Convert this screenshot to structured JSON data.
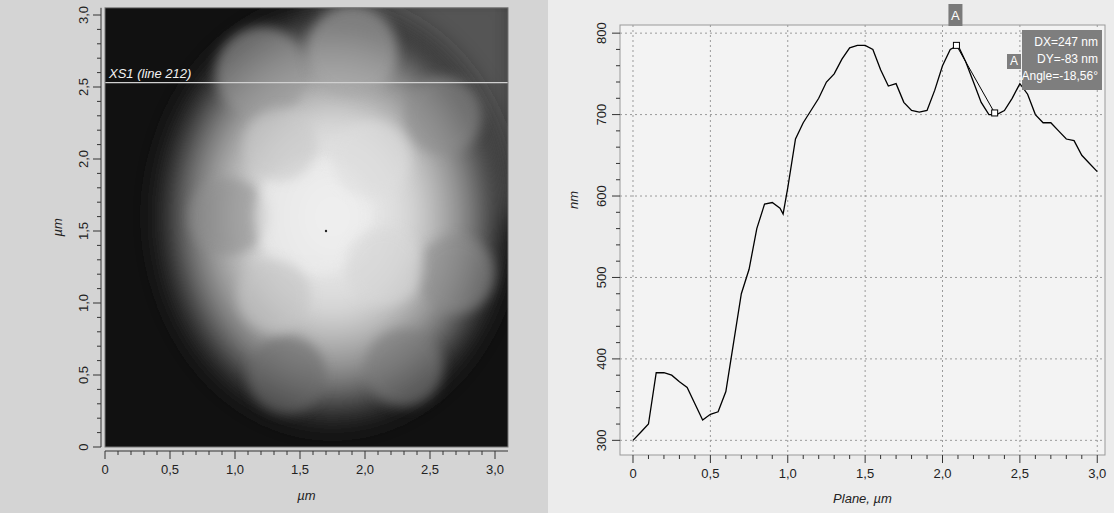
{
  "chart_data": [
    {
      "type": "image",
      "x_label": "µm",
      "y_label": "µm",
      "xlim": [
        0,
        3.1
      ],
      "ylim": [
        0,
        3.05
      ],
      "xticks": [
        0,
        {
          "value": 0.5,
          "label": "0,5"
        },
        {
          "value": 1.0,
          "label": "1,0"
        },
        {
          "value": 1.5,
          "label": "1,5"
        },
        {
          "value": 2.0,
          "label": "2,0"
        },
        {
          "value": 2.5,
          "label": "2,5"
        },
        {
          "value": 3.0,
          "label": "3,0"
        }
      ],
      "yticks": [
        0,
        {
          "value": 0.5,
          "label": "0,5"
        },
        {
          "value": 1.0,
          "label": "1,0"
        },
        {
          "value": 1.5,
          "label": "1,5"
        },
        {
          "value": 2.0,
          "label": "2,0"
        },
        {
          "value": 2.5,
          "label": "2,5"
        },
        {
          "value": 3.0,
          "label": "3,0"
        }
      ],
      "annotation": "XS1 (line 212)",
      "cross_section_y": 2.53
    },
    {
      "type": "line",
      "x_label": "Plane, µm",
      "y_label": "nm",
      "color": "#000000",
      "grid": true,
      "xlim": [
        -0.084,
        3.05
      ],
      "ylim": [
        282,
        810
      ],
      "xticks": [
        0,
        {
          "value": 0.5,
          "label": "0,5"
        },
        {
          "value": 1.0,
          "label": "1,0"
        },
        {
          "value": 1.5,
          "label": "1,5"
        },
        {
          "value": 2.0,
          "label": "2,0"
        },
        {
          "value": 2.5,
          "label": "2,5"
        },
        {
          "value": 3.0,
          "label": "3,0"
        }
      ],
      "yticks": [
        300,
        400,
        500,
        600,
        700,
        800
      ],
      "x": [
        0,
        0.05,
        0.1,
        0.15,
        0.2,
        0.25,
        0.3,
        0.35,
        0.4,
        0.45,
        0.5,
        0.55,
        0.6,
        0.65,
        0.7,
        0.75,
        0.8,
        0.85,
        0.9,
        0.95,
        0.97,
        1.0,
        1.05,
        1.1,
        1.15,
        1.2,
        1.25,
        1.3,
        1.35,
        1.4,
        1.45,
        1.5,
        1.55,
        1.6,
        1.65,
        1.7,
        1.75,
        1.8,
        1.85,
        1.9,
        1.95,
        2.0,
        2.05,
        2.1,
        2.15,
        2.2,
        2.25,
        2.3,
        2.35,
        2.4,
        2.45,
        2.5,
        2.55,
        2.6,
        2.65,
        2.7,
        2.75,
        2.8,
        2.85,
        2.9,
        2.95,
        3.0
      ],
      "values": [
        300,
        310,
        320,
        383,
        383,
        380,
        372,
        365,
        345,
        325,
        332,
        335,
        360,
        420,
        480,
        510,
        560,
        590,
        592,
        585,
        578,
        610,
        670,
        690,
        705,
        720,
        740,
        750,
        768,
        782,
        785,
        785,
        780,
        755,
        735,
        738,
        715,
        705,
        703,
        705,
        730,
        760,
        780,
        785,
        765,
        740,
        715,
        700,
        700,
        705,
        720,
        738,
        725,
        700,
        690,
        690,
        680,
        670,
        668,
        650,
        640,
        630
      ],
      "cursor": {
        "label": "A",
        "x": [
          2.09,
          2.337
        ],
        "y": [
          785,
          702
        ],
        "texts": [
          "DX=247 nm",
          "DY=-83 nm",
          "Angle=-18,56°"
        ]
      }
    }
  ]
}
